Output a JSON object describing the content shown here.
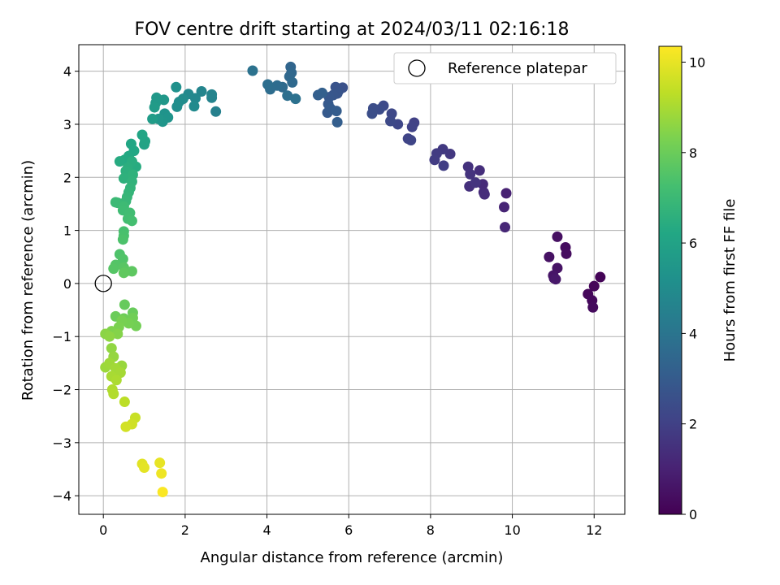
{
  "chart_data": {
    "type": "scatter",
    "title": "FOV centre drift starting at 2024/03/11 02:16:18",
    "xlabel": "Angular distance from reference (arcmin)",
    "ylabel": "Rotation from reference (arcmin)",
    "xlim": [
      -0.6,
      12.75
    ],
    "ylim": [
      -4.35,
      4.5
    ],
    "x_ticks": [
      0,
      2,
      4,
      6,
      8,
      10,
      12
    ],
    "y_ticks": [
      -4,
      -3,
      -2,
      -1,
      0,
      1,
      2,
      3,
      4
    ],
    "grid": true,
    "legend": {
      "position": "top-right",
      "entries": [
        "Reference platepar"
      ]
    },
    "reference_point": {
      "label": "Reference platepar",
      "x": 0,
      "y": 0
    },
    "colorbar": {
      "label": "Hours from first FF file",
      "min": 0,
      "max": 10.35,
      "ticks": [
        0,
        2,
        4,
        6,
        8,
        10
      ],
      "colormap": "viridis"
    },
    "series": [
      {
        "points": [
          [
            12.15,
            0.12,
            0.1
          ],
          [
            12.0,
            -0.05,
            0.15
          ],
          [
            11.85,
            -0.2,
            0.2
          ],
          [
            11.95,
            -0.32,
            0.25
          ],
          [
            11.97,
            -0.45,
            0.3
          ],
          [
            11.3,
            0.68,
            0.35
          ],
          [
            11.32,
            0.56,
            0.4
          ],
          [
            11.1,
            0.88,
            0.45
          ],
          [
            10.9,
            0.5,
            0.5
          ],
          [
            11.1,
            0.29,
            0.55
          ],
          [
            11.0,
            0.15,
            0.6
          ],
          [
            11.02,
            0.1,
            0.65
          ],
          [
            11.06,
            0.08,
            0.7
          ],
          [
            9.85,
            1.7,
            1.0
          ],
          [
            9.8,
            1.44,
            1.1
          ],
          [
            9.82,
            1.06,
            1.15
          ],
          [
            9.28,
            1.87,
            1.25
          ],
          [
            9.3,
            1.72,
            1.3
          ],
          [
            9.32,
            1.68,
            1.35
          ],
          [
            9.2,
            2.13,
            1.4
          ],
          [
            8.95,
            1.83,
            1.45
          ],
          [
            8.92,
            2.2,
            1.5
          ],
          [
            8.97,
            2.06,
            1.55
          ],
          [
            9.1,
            1.9,
            1.6
          ],
          [
            8.48,
            2.44,
            1.7
          ],
          [
            8.3,
            2.53,
            1.75
          ],
          [
            8.15,
            2.45,
            1.8
          ],
          [
            8.1,
            2.33,
            1.85
          ],
          [
            8.32,
            2.22,
            1.9
          ],
          [
            7.6,
            3.03,
            2.0
          ],
          [
            7.55,
            2.95,
            2.05
          ],
          [
            7.45,
            2.73,
            2.1
          ],
          [
            7.52,
            2.7,
            2.15
          ],
          [
            7.2,
            3.0,
            2.2
          ],
          [
            7.05,
            3.2,
            2.25
          ],
          [
            7.02,
            3.06,
            2.3
          ],
          [
            6.85,
            3.35,
            2.35
          ],
          [
            6.75,
            3.28,
            2.4
          ],
          [
            6.6,
            3.3,
            2.45
          ],
          [
            6.57,
            3.2,
            2.5
          ],
          [
            5.85,
            3.69,
            2.6
          ],
          [
            5.75,
            3.63,
            2.65
          ],
          [
            5.68,
            3.7,
            2.7
          ],
          [
            5.72,
            3.58,
            2.75
          ],
          [
            5.62,
            3.55,
            2.8
          ],
          [
            5.52,
            3.51,
            2.85
          ],
          [
            5.5,
            3.38,
            2.9
          ],
          [
            5.48,
            3.22,
            2.95
          ],
          [
            5.55,
            3.3,
            3.0
          ],
          [
            5.7,
            3.25,
            3.05
          ],
          [
            5.72,
            3.04,
            3.1
          ],
          [
            5.25,
            3.55,
            3.15
          ],
          [
            5.35,
            3.59,
            3.2
          ],
          [
            4.58,
            4.08,
            3.4
          ],
          [
            4.6,
            3.97,
            3.45
          ],
          [
            4.55,
            3.9,
            3.5
          ],
          [
            4.62,
            3.79,
            3.55
          ],
          [
            4.38,
            3.7,
            3.6
          ],
          [
            4.25,
            3.73,
            3.65
          ],
          [
            4.08,
            3.66,
            3.7
          ],
          [
            4.02,
            3.75,
            3.75
          ],
          [
            4.5,
            3.54,
            3.8
          ],
          [
            4.7,
            3.48,
            3.85
          ],
          [
            3.65,
            4.01,
            3.9
          ],
          [
            2.75,
            3.24,
            4.5
          ],
          [
            2.65,
            3.5,
            4.6
          ],
          [
            2.65,
            3.56,
            4.65
          ],
          [
            2.4,
            3.62,
            4.7
          ],
          [
            2.25,
            3.49,
            4.8
          ],
          [
            2.08,
            3.57,
            4.85
          ],
          [
            2.22,
            3.34,
            4.9
          ],
          [
            1.95,
            3.48,
            5.0
          ],
          [
            1.85,
            3.42,
            5.05
          ],
          [
            1.8,
            3.33,
            5.1
          ],
          [
            1.78,
            3.7,
            5.2
          ],
          [
            1.5,
            3.2,
            5.3
          ],
          [
            1.58,
            3.13,
            5.35
          ],
          [
            1.45,
            3.05,
            5.4
          ],
          [
            1.35,
            3.1,
            5.45
          ],
          [
            1.48,
            3.46,
            5.5
          ],
          [
            1.3,
            3.5,
            5.55
          ],
          [
            1.28,
            3.4,
            5.6
          ],
          [
            1.25,
            3.32,
            5.65
          ],
          [
            1.2,
            3.1,
            5.7
          ],
          [
            1.0,
            2.62,
            6.0
          ],
          [
            1.02,
            2.68,
            6.05
          ],
          [
            0.95,
            2.8,
            6.1
          ],
          [
            0.68,
            2.63,
            6.15
          ],
          [
            0.75,
            2.5,
            6.2
          ],
          [
            0.62,
            2.4,
            6.25
          ],
          [
            0.52,
            2.33,
            6.3
          ],
          [
            0.4,
            2.3,
            6.35
          ],
          [
            0.8,
            2.2,
            6.4
          ],
          [
            0.7,
            2.3,
            6.45
          ],
          [
            0.6,
            2.18,
            6.5
          ],
          [
            0.55,
            2.12,
            6.55
          ],
          [
            0.5,
            1.98,
            6.6
          ],
          [
            0.72,
            2.05,
            6.65
          ],
          [
            0.7,
            1.92,
            6.7
          ],
          [
            0.66,
            1.8,
            6.75
          ],
          [
            0.62,
            1.72,
            6.8
          ],
          [
            0.58,
            1.63,
            6.85
          ],
          [
            0.55,
            1.55,
            6.9
          ],
          [
            0.35,
            1.52,
            6.95
          ],
          [
            0.3,
            1.53,
            7.0
          ],
          [
            0.5,
            1.45,
            7.05
          ],
          [
            0.48,
            1.38,
            7.1
          ],
          [
            0.65,
            1.33,
            7.15
          ],
          [
            0.6,
            1.22,
            7.2
          ],
          [
            0.7,
            1.18,
            7.25
          ],
          [
            0.5,
            0.98,
            7.3
          ],
          [
            0.5,
            0.9,
            7.35
          ],
          [
            0.48,
            0.83,
            7.4
          ],
          [
            0.4,
            0.55,
            7.45
          ],
          [
            0.48,
            0.46,
            7.5
          ],
          [
            0.3,
            0.35,
            7.55
          ],
          [
            0.25,
            0.28,
            7.6
          ],
          [
            0.5,
            0.3,
            7.65
          ],
          [
            0.55,
            0.23,
            7.7
          ],
          [
            0.7,
            0.23,
            7.75
          ],
          [
            0.5,
            0.2,
            7.8
          ],
          [
            0.52,
            -0.4,
            7.9
          ],
          [
            0.72,
            -0.55,
            7.95
          ],
          [
            0.3,
            -0.62,
            8.0
          ],
          [
            0.5,
            -0.66,
            8.05
          ],
          [
            0.72,
            -0.65,
            8.1
          ],
          [
            0.8,
            -0.8,
            8.15
          ],
          [
            0.62,
            -0.75,
            8.2
          ],
          [
            0.45,
            -0.7,
            8.25
          ],
          [
            0.38,
            -0.82,
            8.3
          ],
          [
            0.2,
            -0.9,
            8.35
          ],
          [
            0.35,
            -0.95,
            8.45
          ],
          [
            0.05,
            -0.95,
            8.55
          ],
          [
            0.15,
            -1.0,
            8.6
          ],
          [
            0.2,
            -1.22,
            8.65
          ],
          [
            0.25,
            -1.38,
            8.7
          ],
          [
            0.45,
            -1.55,
            8.75
          ],
          [
            0.05,
            -1.58,
            8.8
          ],
          [
            0.15,
            -1.5,
            8.85
          ],
          [
            0.3,
            -1.6,
            8.9
          ],
          [
            0.42,
            -1.68,
            8.95
          ],
          [
            0.2,
            -1.75,
            9.0
          ],
          [
            0.32,
            -1.82,
            9.05
          ],
          [
            0.22,
            -2.0,
            9.1
          ],
          [
            0.25,
            -2.08,
            9.15
          ],
          [
            0.52,
            -2.23,
            9.3
          ],
          [
            0.78,
            -2.53,
            9.5
          ],
          [
            0.7,
            -2.65,
            9.6
          ],
          [
            0.55,
            -2.7,
            9.65
          ],
          [
            0.95,
            -3.4,
            9.9
          ],
          [
            1.0,
            -3.47,
            9.95
          ],
          [
            1.38,
            -3.38,
            10.0
          ],
          [
            1.42,
            -3.58,
            10.1
          ],
          [
            1.45,
            -3.93,
            10.3
          ]
        ]
      }
    ]
  }
}
